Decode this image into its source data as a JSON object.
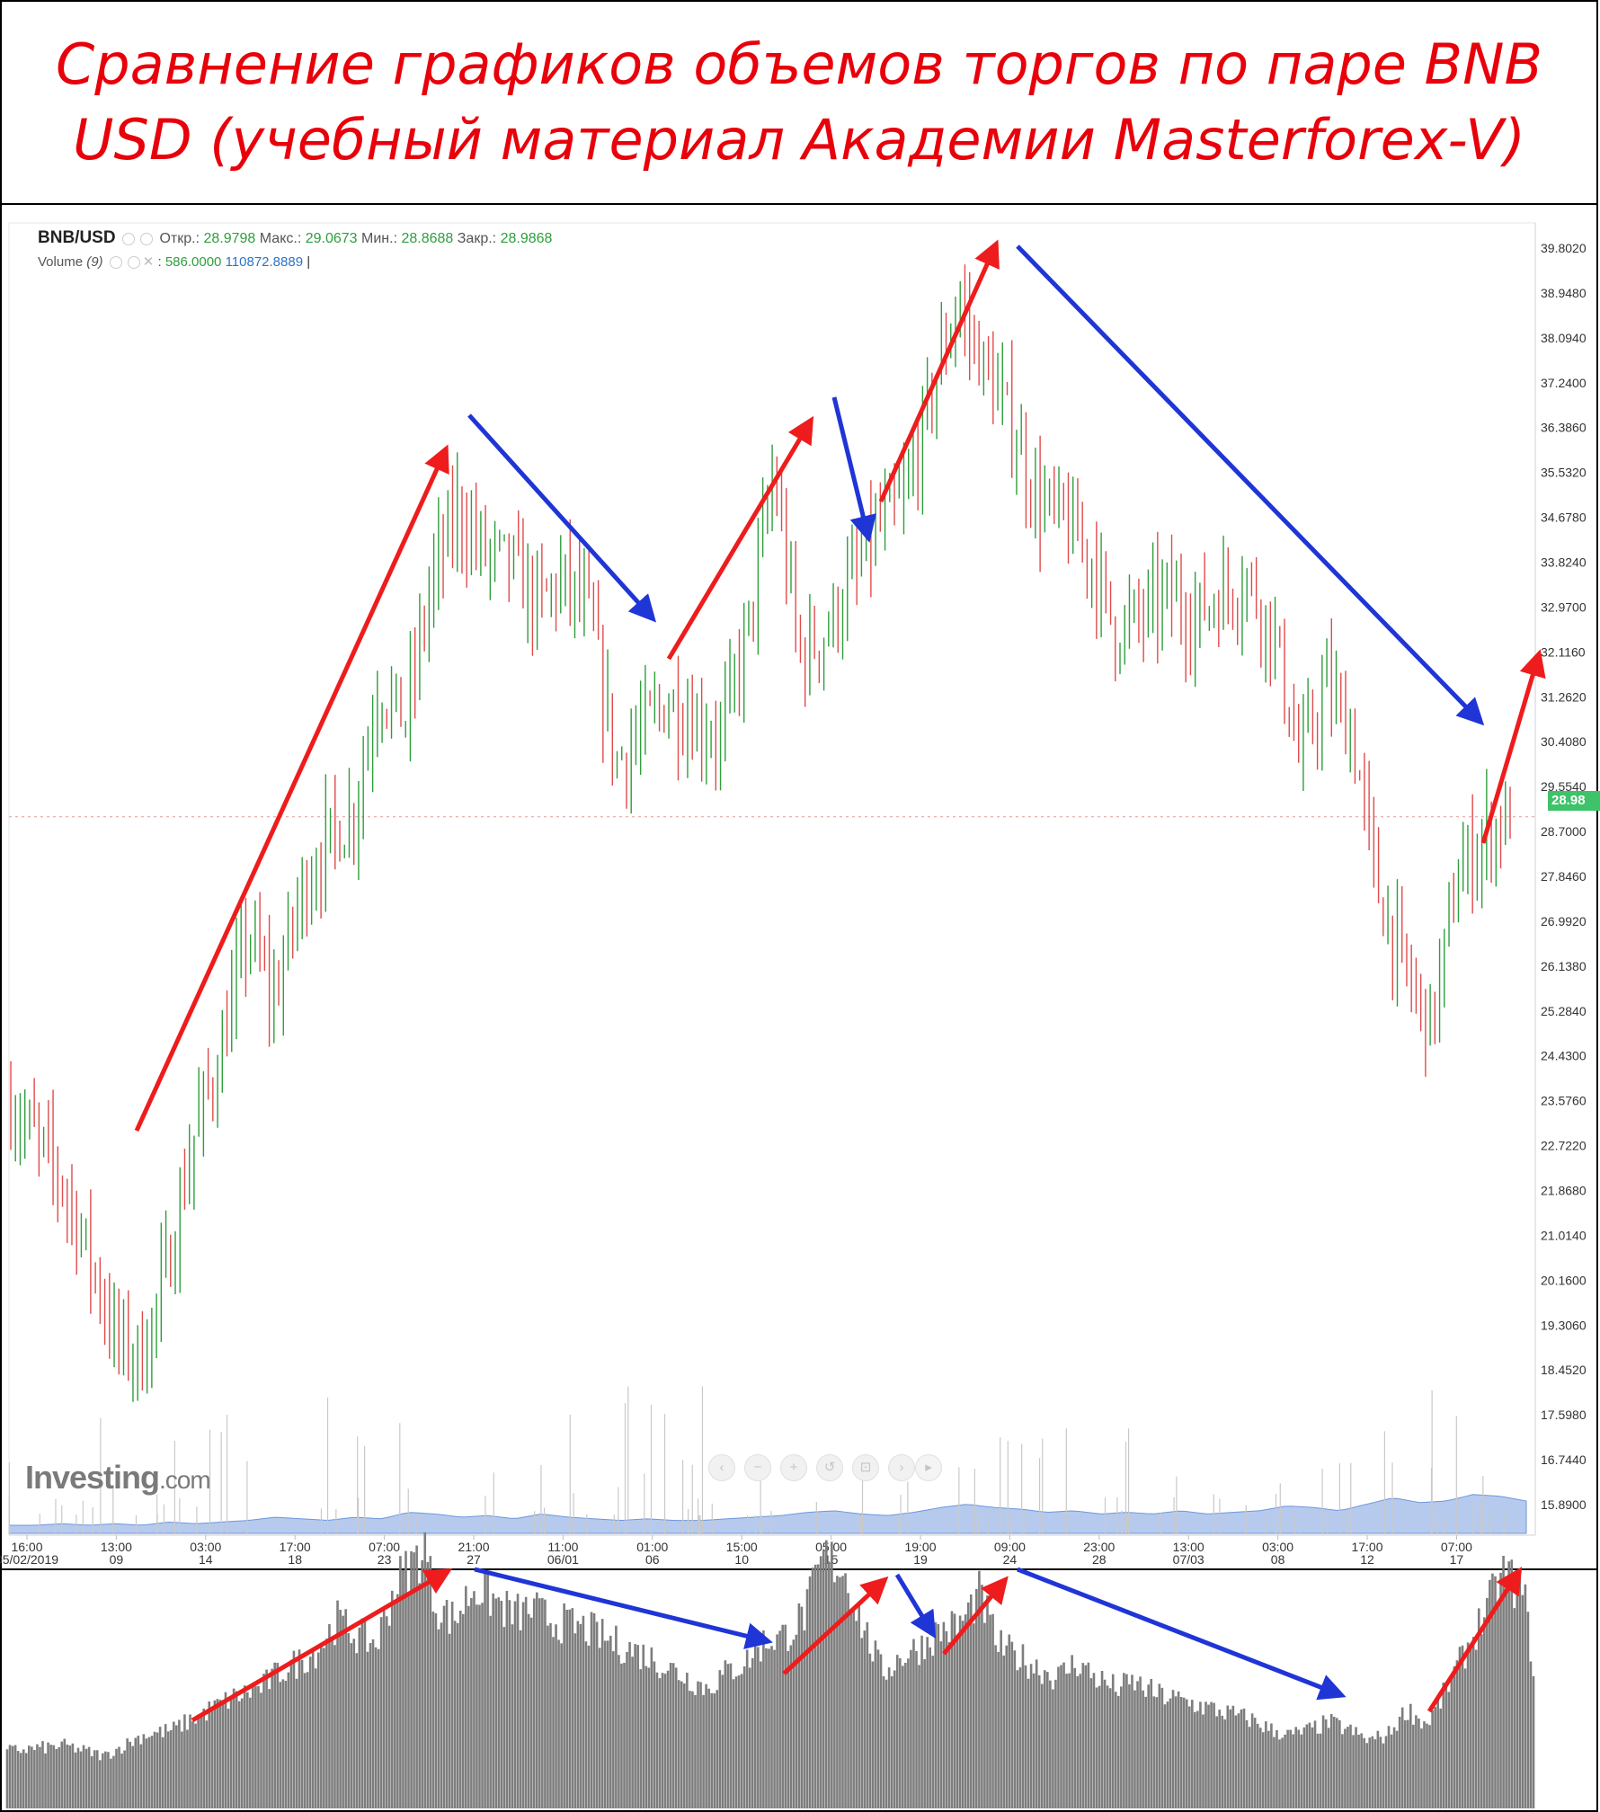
{
  "title": "Сравнение графиков объемов торгов по паре BNB USD (учебный материал Академии Masterforex-V)",
  "header": {
    "symbol": "BNB/USD",
    "open_label": "Откр.:",
    "open": "28.9798",
    "high_label": "Макс.:",
    "high": "29.0673",
    "low_label": "Мин.:",
    "low": "28.8688",
    "close_label": "Закр.:",
    "close": "28.9868",
    "volume_label": "Volume",
    "volume_period": "(9)",
    "volume_v1": "586.0000",
    "volume_v2": "110872.8889"
  },
  "logo": {
    "main": "Investing",
    "suffix": ".com"
  },
  "nav_controls": [
    "chevron-left-icon",
    "zoom-out-icon",
    "zoom-in-icon",
    "reset-icon",
    "zoom-range-icon",
    "chevron-right-icon"
  ],
  "colors": {
    "title": "#e8000b",
    "up_candle": "#2e9e3c",
    "down_candle": "#e04b4b",
    "volume_area": "#9db8e8",
    "red_arrow": "#ee1c1c",
    "blue_arrow": "#1f35d6",
    "bottom_volume": "#7d7d7d",
    "price_badge": "#3ec26a"
  },
  "chart_data": [
    {
      "type": "candlestick",
      "pair": "BNB/USD",
      "y_ticks": [
        "39.8020",
        "38.9480",
        "38.0940",
        "37.2400",
        "36.3860",
        "35.5320",
        "34.6780",
        "33.8240",
        "32.9700",
        "32.1160",
        "31.2620",
        "30.4080",
        "29.5540",
        "28.7000",
        "27.8460",
        "26.9920",
        "26.1380",
        "25.2840",
        "24.4300",
        "23.5760",
        "22.7220",
        "21.8680",
        "21.0140",
        "20.1600",
        "19.3060",
        "18.4520",
        "17.5980",
        "16.7440",
        "15.8900"
      ],
      "ylim": [
        15.89,
        39.802
      ],
      "last_price": "28.98",
      "x_ticks": [
        {
          "time": "16:00",
          "date": "05/02/2019"
        },
        {
          "time": "13:00",
          "date": "09"
        },
        {
          "time": "03:00",
          "date": "14"
        },
        {
          "time": "17:00",
          "date": "18"
        },
        {
          "time": "07:00",
          "date": "23"
        },
        {
          "time": "21:00",
          "date": "27"
        },
        {
          "time": "11:00",
          "date": "06/01"
        },
        {
          "time": "01:00",
          "date": "06"
        },
        {
          "time": "15:00",
          "date": "10"
        },
        {
          "time": "05:00",
          "date": "15"
        },
        {
          "time": "19:00",
          "date": "19"
        },
        {
          "time": "09:00",
          "date": "24"
        },
        {
          "time": "23:00",
          "date": "28"
        },
        {
          "time": "13:00",
          "date": "07/03"
        },
        {
          "time": "03:00",
          "date": "08"
        },
        {
          "time": "17:00",
          "date": "12"
        },
        {
          "time": "07:00",
          "date": "17"
        }
      ],
      "price_path": [
        [
          0,
          23.5
        ],
        [
          1,
          22.8
        ],
        [
          2,
          22.0
        ],
        [
          3,
          20.6
        ],
        [
          4,
          19.0
        ],
        [
          5,
          18.7
        ],
        [
          6,
          20.5
        ],
        [
          7,
          23.0
        ],
        [
          8,
          24.5
        ],
        [
          9,
          26.8
        ],
        [
          10,
          25.5
        ],
        [
          11,
          27.5
        ],
        [
          12,
          28.5
        ],
        [
          13,
          29.0
        ],
        [
          14,
          31.5
        ],
        [
          15,
          30.8
        ],
        [
          16,
          33.5
        ],
        [
          17,
          34.8
        ],
        [
          18,
          34.0
        ],
        [
          19,
          33.8
        ],
        [
          20,
          33.0
        ],
        [
          21,
          33.5
        ],
        [
          22,
          32.8
        ],
        [
          23,
          30.0
        ],
        [
          24,
          30.6
        ],
        [
          25,
          31.2
        ],
        [
          26,
          30.8
        ],
        [
          27,
          30.5
        ],
        [
          28,
          32.5
        ],
        [
          29,
          35.5
        ],
        [
          30,
          32.0
        ],
        [
          31,
          32.5
        ],
        [
          32,
          33.5
        ],
        [
          33,
          34.5
        ],
        [
          34,
          35.0
        ],
        [
          35,
          37.0
        ],
        [
          36,
          38.8
        ],
        [
          37,
          37.5
        ],
        [
          38,
          36.5
        ],
        [
          39,
          35.0
        ],
        [
          40,
          34.6
        ],
        [
          41,
          34.0
        ],
        [
          42,
          32.5
        ],
        [
          43,
          32.8
        ],
        [
          44,
          33.2
        ],
        [
          45,
          32.8
        ],
        [
          46,
          33.2
        ],
        [
          47,
          33.5
        ],
        [
          48,
          32.5
        ],
        [
          49,
          30.0
        ],
        [
          50,
          31.5
        ],
        [
          51,
          30.5
        ],
        [
          52,
          27.5
        ],
        [
          53,
          26.0
        ],
        [
          54,
          25.0
        ],
        [
          55,
          27.8
        ],
        [
          56,
          28.6
        ],
        [
          57,
          29.0
        ]
      ],
      "volume_path": [
        0.05,
        0.05,
        0.06,
        0.05,
        0.06,
        0.05,
        0.07,
        0.06,
        0.07,
        0.08,
        0.1,
        0.09,
        0.08,
        0.1,
        0.09,
        0.13,
        0.12,
        0.1,
        0.11,
        0.09,
        0.12,
        0.1,
        0.09,
        0.08,
        0.09,
        0.08,
        0.08,
        0.09,
        0.1,
        0.11,
        0.13,
        0.14,
        0.12,
        0.11,
        0.13,
        0.16,
        0.18,
        0.16,
        0.15,
        0.13,
        0.14,
        0.12,
        0.13,
        0.12,
        0.14,
        0.12,
        0.13,
        0.14,
        0.17,
        0.16,
        0.14,
        0.18,
        0.22,
        0.19,
        0.2,
        0.24,
        0.23,
        0.2
      ]
    },
    {
      "type": "bar",
      "role": "volume comparison",
      "profile": [
        [
          0,
          0.22
        ],
        [
          6,
          0.24
        ],
        [
          10,
          0.2
        ],
        [
          14,
          0.28
        ],
        [
          17,
          0.3
        ],
        [
          20,
          0.36
        ],
        [
          23,
          0.42
        ],
        [
          26,
          0.46
        ],
        [
          28,
          0.52
        ],
        [
          30,
          0.56
        ],
        [
          32,
          0.61
        ],
        [
          34,
          0.72
        ],
        [
          36,
          0.66
        ],
        [
          38,
          0.63
        ],
        [
          40,
          0.86
        ],
        [
          42,
          0.95
        ],
        [
          43,
          1.0
        ],
        [
          44,
          0.78
        ],
        [
          46,
          0.72
        ],
        [
          48,
          0.85
        ],
        [
          50,
          0.8
        ],
        [
          52,
          0.74
        ],
        [
          54,
          0.76
        ],
        [
          56,
          0.72
        ],
        [
          58,
          0.7
        ],
        [
          60,
          0.68
        ],
        [
          62,
          0.64
        ],
        [
          64,
          0.61
        ],
        [
          66,
          0.58
        ],
        [
          68,
          0.54
        ],
        [
          70,
          0.5
        ],
        [
          72,
          0.46
        ],
        [
          74,
          0.52
        ],
        [
          76,
          0.56
        ],
        [
          78,
          0.64
        ],
        [
          80,
          0.66
        ],
        [
          82,
          0.74
        ],
        [
          84,
          0.96
        ],
        [
          86,
          0.92
        ],
        [
          88,
          0.7
        ],
        [
          90,
          0.52
        ],
        [
          92,
          0.58
        ],
        [
          94,
          0.62
        ],
        [
          96,
          0.68
        ],
        [
          98,
          0.7
        ],
        [
          100,
          0.82
        ],
        [
          102,
          0.62
        ],
        [
          104,
          0.58
        ],
        [
          106,
          0.54
        ],
        [
          108,
          0.5
        ],
        [
          110,
          0.56
        ],
        [
          112,
          0.5
        ],
        [
          114,
          0.46
        ],
        [
          116,
          0.48
        ],
        [
          118,
          0.44
        ],
        [
          120,
          0.42
        ],
        [
          122,
          0.4
        ],
        [
          124,
          0.38
        ],
        [
          126,
          0.36
        ],
        [
          128,
          0.34
        ],
        [
          130,
          0.3
        ],
        [
          132,
          0.28
        ],
        [
          134,
          0.3
        ],
        [
          136,
          0.33
        ],
        [
          138,
          0.3
        ],
        [
          140,
          0.26
        ],
        [
          142,
          0.28
        ],
        [
          144,
          0.38
        ],
        [
          146,
          0.32
        ],
        [
          148,
          0.45
        ],
        [
          150,
          0.6
        ],
        [
          152,
          0.75
        ],
        [
          154,
          0.9
        ],
        [
          156,
          0.82
        ],
        [
          157,
          0.55
        ]
      ]
    }
  ]
}
